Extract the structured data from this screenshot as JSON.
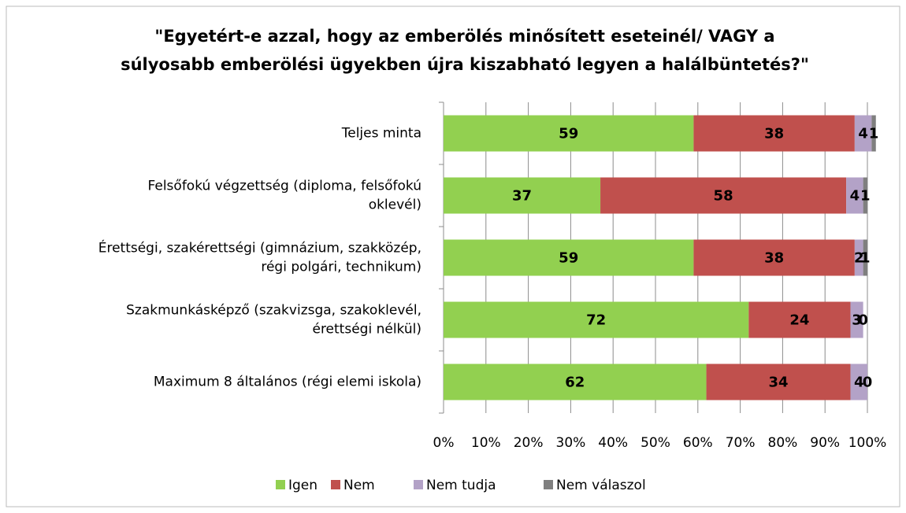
{
  "chart_data": {
    "type": "stacked-bar-horizontal",
    "title": [
      "\"Egyetért-e azzal, hogy az emberölés minősített eseteinél/ VAGY a",
      "súlyosabb emberölési ügyekben újra kiszabható legyen a halálbüntetés?\""
    ],
    "categories": [
      [
        "Teljes minta"
      ],
      [
        "Felsőfokú végzettség (diploma, felsőfokú",
        "oklevél)"
      ],
      [
        "Érettségi, szakérettségi (gimnázium, szakközép,",
        "régi polgári, technikum)"
      ],
      [
        "Szakmunkásképző (szakvizsga, szakoklevél,",
        "érettségi nélkül)"
      ],
      [
        "Maximum 8 általános (régi elemi iskola)"
      ]
    ],
    "series": [
      {
        "name": "Igen",
        "color": "#92d050",
        "values": [
          59,
          37,
          59,
          72,
          62
        ]
      },
      {
        "name": "Nem",
        "color": "#c0504d",
        "values": [
          38,
          58,
          38,
          24,
          34
        ]
      },
      {
        "name": "Nem tudja",
        "color": "#b3a2c7",
        "values": [
          4,
          4,
          2,
          3,
          4
        ]
      },
      {
        "name": "Nem válaszol",
        "color": "#7f7f7f",
        "values": [
          1,
          1,
          1,
          0,
          0
        ]
      }
    ],
    "xlim": [
      0,
      100
    ],
    "xticks": [
      {
        "value": 0,
        "label": "0%"
      },
      {
        "value": 10,
        "label": "10%"
      },
      {
        "value": 20,
        "label": "20%"
      },
      {
        "value": 30,
        "label": "30%"
      },
      {
        "value": 40,
        "label": "40%"
      },
      {
        "value": 50,
        "label": "50%"
      },
      {
        "value": 60,
        "label": "60%"
      },
      {
        "value": 70,
        "label": "70%"
      },
      {
        "value": 80,
        "label": "80%"
      },
      {
        "value": 90,
        "label": "90%"
      },
      {
        "value": 100,
        "label": "100%"
      }
    ],
    "grid": true,
    "legend": "bottom"
  }
}
